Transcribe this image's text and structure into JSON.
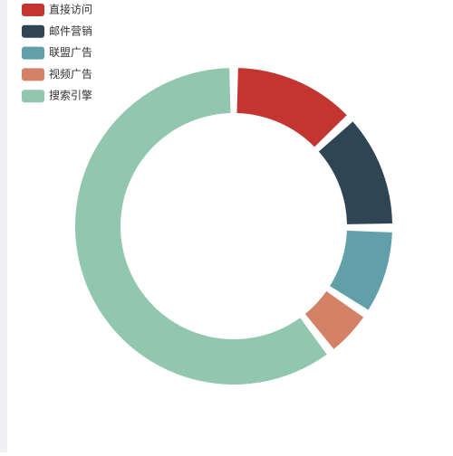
{
  "chart_data": {
    "type": "pie",
    "donut": true,
    "categories": [
      "直接访问",
      "邮件营销",
      "联盟广告",
      "视频广告",
      "搜索引擎"
    ],
    "values": [
      335,
      310,
      234,
      135,
      1548
    ],
    "colors": [
      "#c23531",
      "#2f4554",
      "#61a0a8",
      "#d48265",
      "#91c7ae"
    ],
    "legend": "top-left"
  }
}
